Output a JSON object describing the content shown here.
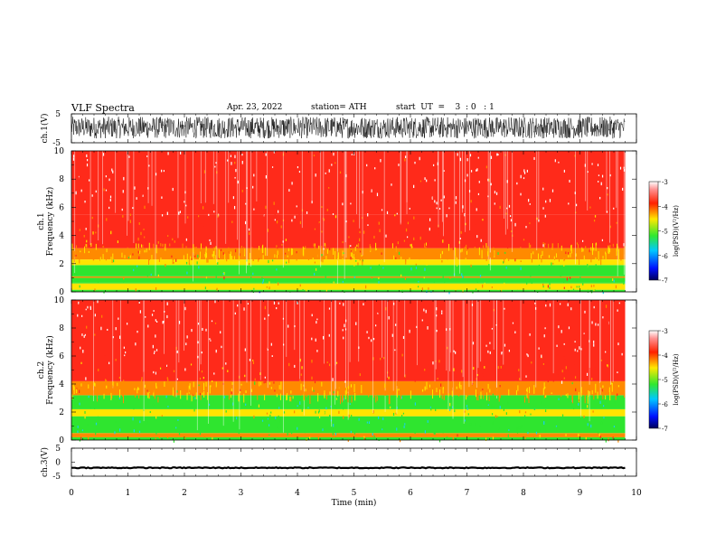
{
  "header": {
    "title": "VLF  Spectra",
    "date": "Apr. 23, 2022",
    "station": "station= ATH",
    "start": "start  UT  =    3  : 0   : 1"
  },
  "chart_data": [
    {
      "type": "line",
      "panel": "ch1-waveform",
      "ylabel": "ch.1(V)",
      "ylim": [
        -5,
        5
      ],
      "yticks": [
        "5",
        "-5"
      ],
      "xlim": [
        0,
        10
      ],
      "x_end": 9.8,
      "series": [
        {
          "description": "noisy waveform filling approximately -3.5 to 4 V",
          "range": [
            -3.5,
            4.0
          ],
          "color": "#000000"
        }
      ]
    },
    {
      "type": "heatmap",
      "panel": "ch1-spectrogram",
      "ylabel": "ch.1\nFrequency (kHz)",
      "ylim": [
        0,
        10
      ],
      "yticks": [
        0,
        2,
        4,
        6,
        8,
        10
      ],
      "xlim": [
        0,
        10
      ],
      "x_end": 9.8,
      "bands_kHz": [
        {
          "from": 0.0,
          "to": 0.15,
          "level": -5.2
        },
        {
          "from": 0.15,
          "to": 0.6,
          "level": -4.4
        },
        {
          "from": 0.6,
          "to": 0.7,
          "level": -4.6
        },
        {
          "from": 0.7,
          "to": 1.0,
          "level": -5.0
        },
        {
          "from": 1.0,
          "to": 1.1,
          "level": -4.2
        },
        {
          "from": 1.1,
          "to": 1.9,
          "level": -5.0
        },
        {
          "from": 1.9,
          "to": 2.3,
          "level": -4.5
        },
        {
          "from": 2.3,
          "to": 3.1,
          "level": -4.1
        },
        {
          "from": 3.1,
          "to": 5.5,
          "level": -3.8
        },
        {
          "from": 5.5,
          "to": 10.0,
          "level": -3.4
        }
      ],
      "colorbar": {
        "label": "log(PSD)(V²/Hz)",
        "min": -7,
        "max": -3,
        "ticks": [
          "-3",
          "-4",
          "-5",
          "-6",
          "-7"
        ]
      }
    },
    {
      "type": "heatmap",
      "panel": "ch2-spectrogram",
      "ylabel": "ch.2\nFrequency (kHz)",
      "ylim": [
        0,
        10
      ],
      "yticks": [
        0,
        2,
        4,
        6,
        8,
        10
      ],
      "xlim": [
        0,
        10
      ],
      "x_end": 9.8,
      "bands_kHz": [
        {
          "from": 0.0,
          "to": 0.2,
          "level": -4.6
        },
        {
          "from": 0.2,
          "to": 0.5,
          "level": -4.2
        },
        {
          "from": 0.5,
          "to": 1.7,
          "level": -5.1
        },
        {
          "from": 1.7,
          "to": 2.2,
          "level": -4.5
        },
        {
          "from": 2.2,
          "to": 3.2,
          "level": -5.0
        },
        {
          "from": 3.2,
          "to": 4.2,
          "level": -4.1
        },
        {
          "from": 4.2,
          "to": 6.0,
          "level": -3.8
        },
        {
          "from": 6.0,
          "to": 10.0,
          "level": -3.4
        }
      ],
      "colorbar": {
        "label": "log(PSD)(V²/Hz)",
        "min": -7,
        "max": -3,
        "ticks": [
          "-3",
          "-4",
          "-5",
          "-6",
          "-7"
        ]
      }
    },
    {
      "type": "line",
      "panel": "ch3-waveform",
      "ylabel": "ch.3(V)",
      "ylim": [
        -5,
        5
      ],
      "yticks": [
        "5",
        "0",
        "-5"
      ],
      "xlim": [
        0,
        10
      ],
      "x_end": 9.8,
      "series": [
        {
          "description": "flat trace near -2 V",
          "value": -2.0,
          "color": "#000000"
        }
      ]
    }
  ],
  "xaxis": {
    "label": "Time  (min)",
    "ticks": [
      "0",
      "1",
      "2",
      "3",
      "4",
      "5",
      "6",
      "7",
      "8",
      "9",
      "10"
    ]
  },
  "colors": {
    "red": "#ff2a1a",
    "orange": "#ff8a00",
    "yellow": "#ffe400",
    "green": "#2fe52f",
    "cyan": "#1ad0e8",
    "blue": "#1a20ff",
    "navy": "#00006a"
  }
}
